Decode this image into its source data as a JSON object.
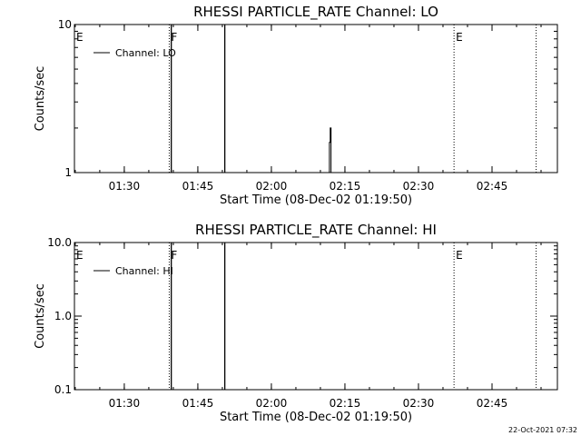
{
  "footer": {
    "timestamp": "22-Oct-2021 07:32"
  },
  "chart_data": [
    {
      "type": "line",
      "title": "RHESSI PARTICLE_RATE Channel: LO",
      "xlabel": "Start Time (08-Dec-02 01:19:50)",
      "ylabel": "Counts/sec",
      "yscale": "log",
      "ylim": [
        1,
        10
      ],
      "xlim": [
        "01:19:50",
        "02:58:20"
      ],
      "x_ticks": [
        "01:30",
        "01:45",
        "02:00",
        "02:15",
        "02:30",
        "02:45"
      ],
      "y_ticks": [
        "1",
        "10"
      ],
      "legend": {
        "placement": "top-left",
        "entries": [
          "Channel: LO"
        ]
      },
      "series": [
        {
          "name": "Channel: LO",
          "x": [
            "02:11:40",
            "02:11:50",
            "02:11:50",
            "02:12:00",
            "02:12:00",
            "02:12:10",
            "02:12:10",
            "02:12:20"
          ],
          "y": [
            1,
            1,
            1.6,
            1.6,
            2,
            2,
            1,
            1
          ]
        }
      ],
      "markers": [
        {
          "label": "E",
          "time": "01:19:50",
          "style": "none"
        },
        {
          "label": "F",
          "time": "01:39:10",
          "style": "dotted"
        },
        {
          "label": "",
          "time": "01:39:35",
          "style": "solid"
        },
        {
          "label": "",
          "time": "01:50:30",
          "style": "solid"
        },
        {
          "label": "E",
          "time": "02:37:15",
          "style": "dotted"
        },
        {
          "label": "",
          "time": "02:54:00",
          "style": "dotted"
        }
      ]
    },
    {
      "type": "line",
      "title": "RHESSI PARTICLE_RATE Channel: HI",
      "xlabel": "Start Time (08-Dec-02 01:19:50)",
      "ylabel": "Counts/sec",
      "yscale": "log",
      "ylim": [
        0.1,
        10
      ],
      "xlim": [
        "01:19:50",
        "02:58:20"
      ],
      "x_ticks": [
        "01:30",
        "01:45",
        "02:00",
        "02:15",
        "02:30",
        "02:45"
      ],
      "y_ticks": [
        "0.1",
        "1.0",
        "10.0"
      ],
      "legend": {
        "placement": "top-left",
        "entries": [
          "Channel: HI"
        ]
      },
      "series": [
        {
          "name": "Channel: HI",
          "x": [],
          "y": []
        }
      ],
      "markers": [
        {
          "label": "E",
          "time": "01:19:50",
          "style": "none"
        },
        {
          "label": "F",
          "time": "01:39:10",
          "style": "dotted"
        },
        {
          "label": "",
          "time": "01:39:35",
          "style": "solid"
        },
        {
          "label": "",
          "time": "01:50:30",
          "style": "solid"
        },
        {
          "label": "E",
          "time": "02:37:15",
          "style": "dotted"
        },
        {
          "label": "",
          "time": "02:54:00",
          "style": "dotted"
        }
      ]
    }
  ]
}
